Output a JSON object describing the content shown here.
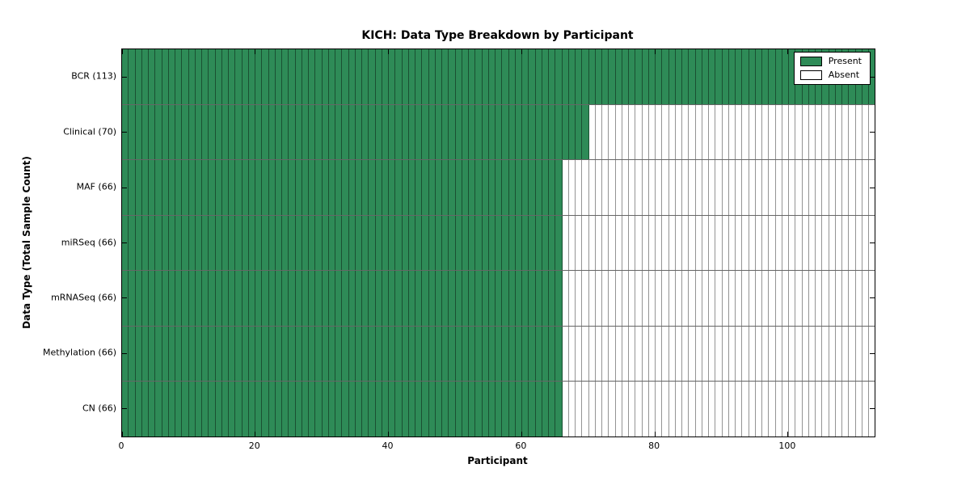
{
  "chart_data": {
    "type": "heatmap",
    "title": "KICH: Data Type Breakdown by Participant",
    "xlabel": "Participant",
    "ylabel": "Data Type (Total Sample Count)",
    "xlim": [
      0,
      113
    ],
    "x_ticks": [
      0,
      20,
      40,
      60,
      80,
      100
    ],
    "n_participants": 113,
    "grid": false,
    "legend_position": "upper right",
    "legend": [
      {
        "label": "Present",
        "color": "#2e8b57"
      },
      {
        "label": "Absent",
        "color": "#ffffff"
      }
    ],
    "rows": [
      {
        "label": "BCR (113)",
        "data_type": "BCR",
        "total": 113,
        "present": 113,
        "absent": 0
      },
      {
        "label": "Clinical (70)",
        "data_type": "Clinical",
        "total": 70,
        "present": 70,
        "absent": 43
      },
      {
        "label": "MAF (66)",
        "data_type": "MAF",
        "total": 66,
        "present": 66,
        "absent": 47
      },
      {
        "label": "miRSeq (66)",
        "data_type": "miRSeq",
        "total": 66,
        "present": 66,
        "absent": 47
      },
      {
        "label": "mRNASeq (66)",
        "data_type": "mRNASeq",
        "total": 66,
        "present": 66,
        "absent": 47
      },
      {
        "label": "Methylation (66)",
        "data_type": "Methylation",
        "total": 66,
        "present": 66,
        "absent": 47
      },
      {
        "label": "CN (66)",
        "data_type": "CN",
        "total": 66,
        "present": 66,
        "absent": 47
      }
    ],
    "colors": {
      "present": "#2e8b57",
      "absent": "#ffffff",
      "cell_border": "rgba(0,0,0,0.42)",
      "row_separator": "rgba(0,0,0,0.60)",
      "frame": "#000000"
    }
  }
}
